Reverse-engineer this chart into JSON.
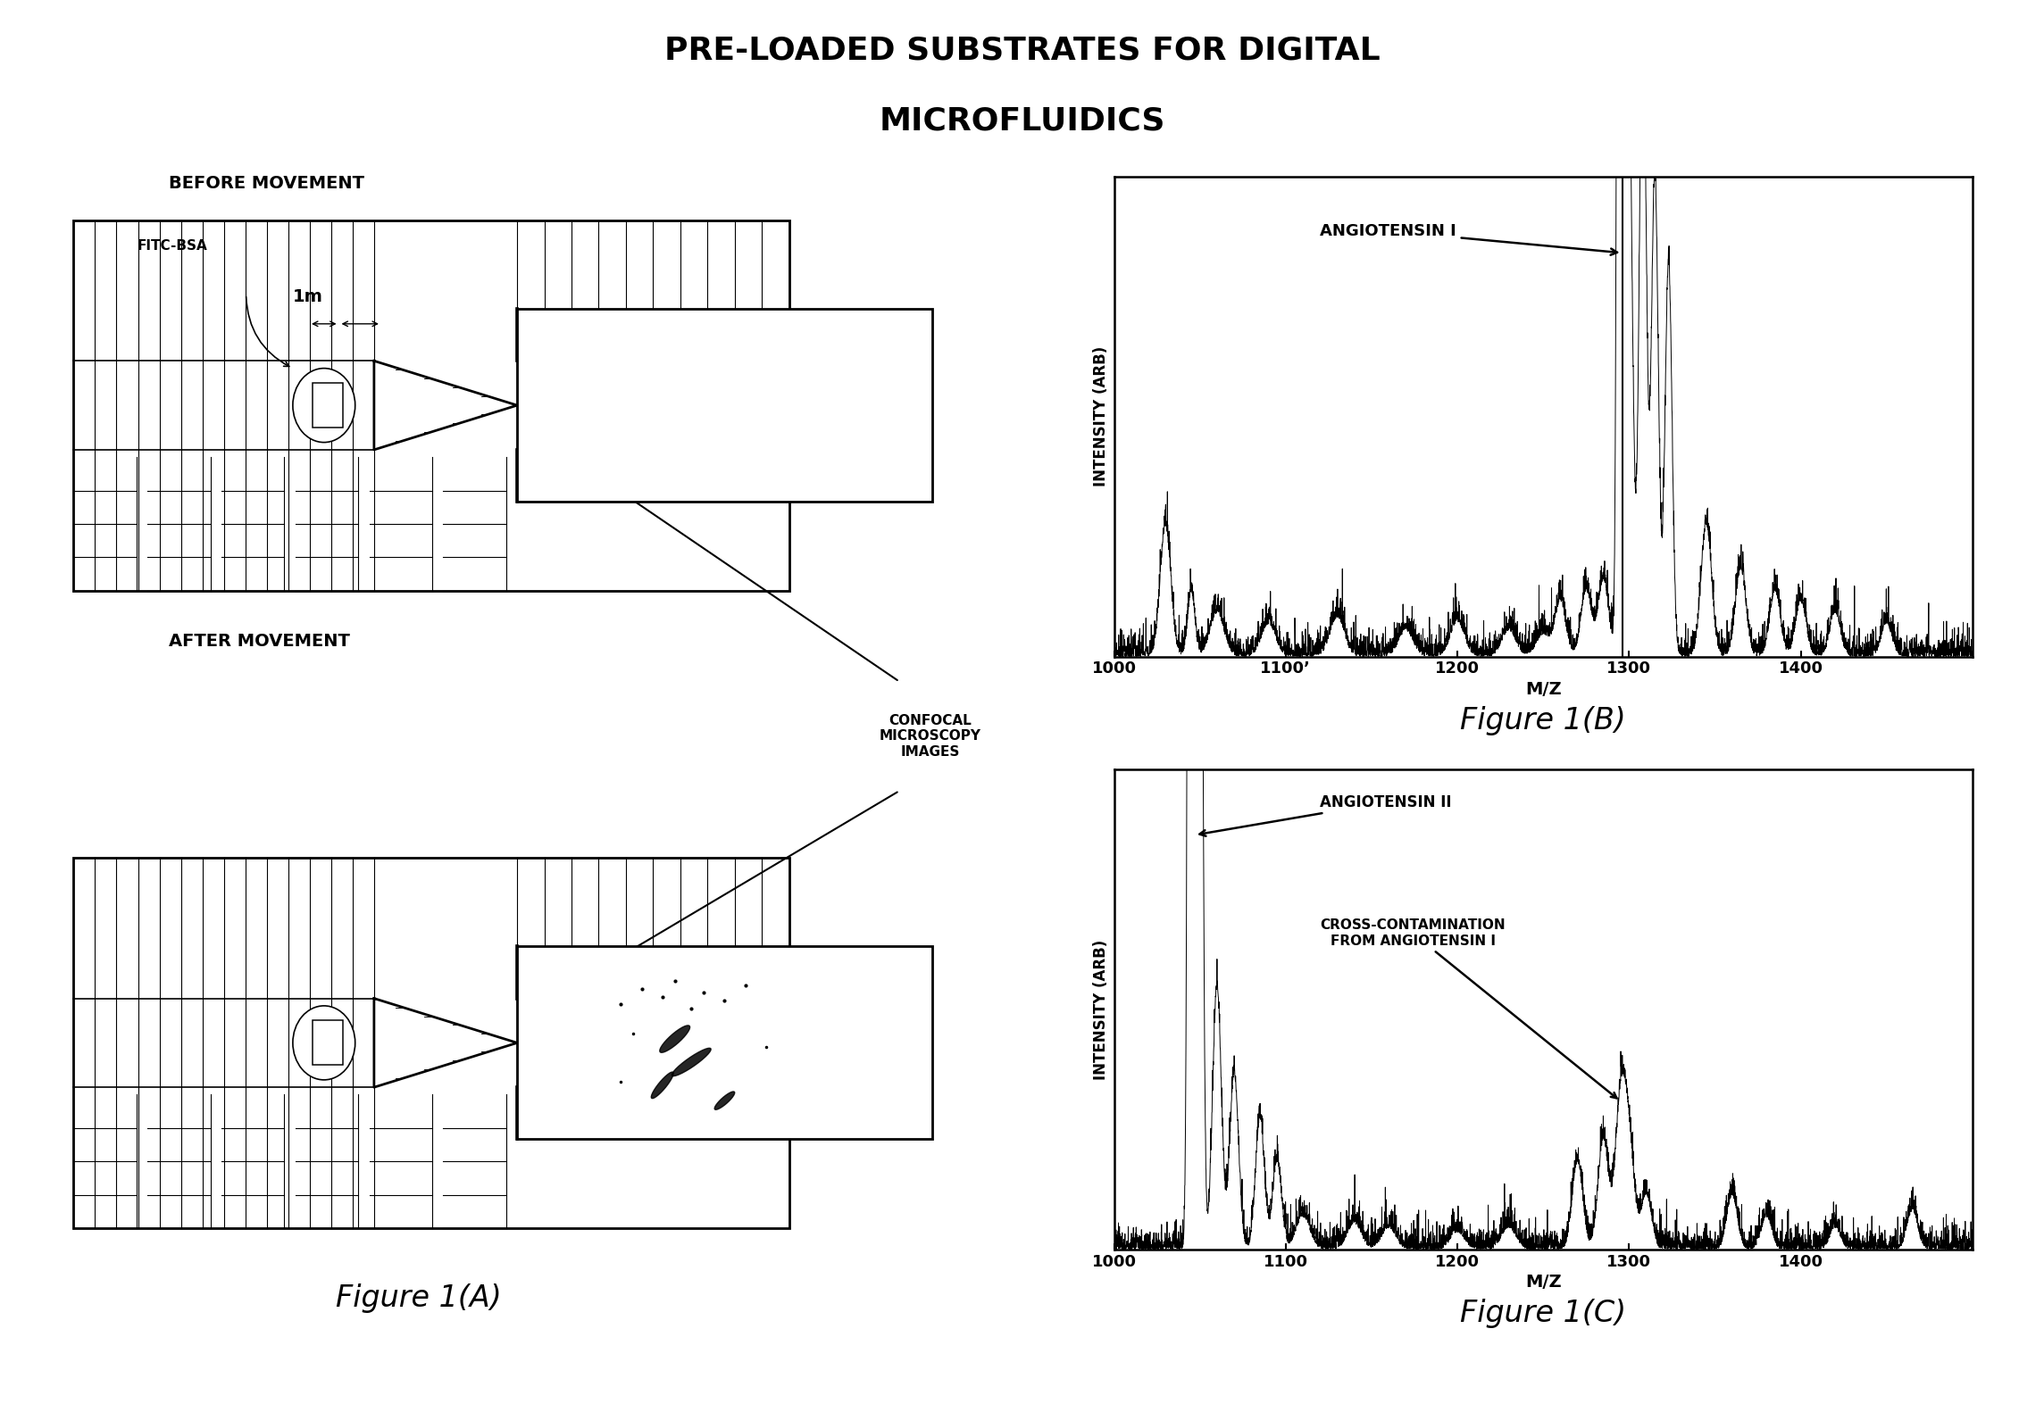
{
  "title_line1": "PRE-LOADED SUBSTRATES FOR DIGITAL",
  "title_line2": "MICROFLUIDICS",
  "title_fontsize": 26,
  "title_fontweight": "bold",
  "fig_bg": "#ffffff",
  "label_A": "Figure 1(A)",
  "label_B": "Figure 1(B)",
  "label_C": "Figure 1(C)",
  "before_label": "BEFORE MOVEMENT",
  "after_label": "AFTER MOVEMENT",
  "fitc_label": "FITC-BSA",
  "size_label": "1m",
  "confocal_label": "CONFOCAL\nMICROSCOPY\nIMAGES",
  "angiotensin1_label": "ANGIOTENSIN I",
  "angiotensin2_label": "ANGIOTENSIN II",
  "cross_label": "CROSS-CONTAMINATION\nFROM ANGIOTENSIN I",
  "ylabel": "INTENSITY (ARB)",
  "xlabel": "M/Z",
  "xticks": [
    1000,
    1100,
    1200,
    1300,
    1400
  ],
  "xtick_labels": [
    "1000",
    "1100",
    "1200",
    "1300",
    "1400"
  ],
  "xmin": 1000,
  "xmax": 1500
}
